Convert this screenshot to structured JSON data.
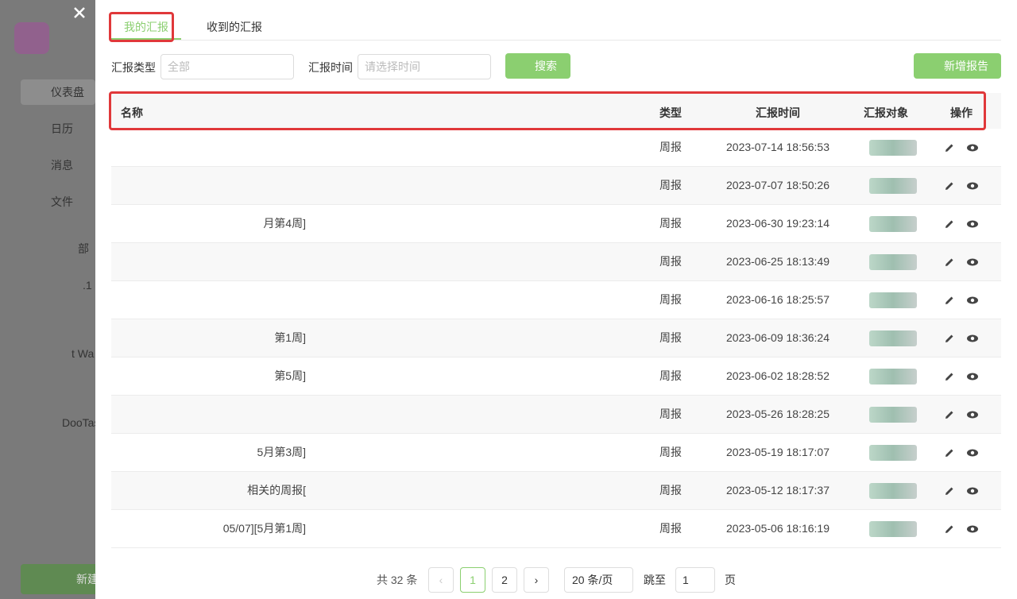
{
  "sidebar": {
    "menu": [
      "仪表盘",
      "日历",
      "消息",
      "文件"
    ],
    "fragments": [
      "部",
      ".1",
      "t Wa"
    ],
    "project": "DooTas",
    "new_button": "新建"
  },
  "tabs": [
    "我的汇报",
    "收到的汇报"
  ],
  "filters": {
    "type_label": "汇报类型",
    "type_value": "全部",
    "time_label": "汇报时间",
    "time_placeholder": "请选择时间",
    "search": "搜索",
    "add": "新增报告"
  },
  "table": {
    "headers": [
      "名称",
      "类型",
      "汇报时间",
      "汇报对象",
      "操作"
    ],
    "rows": [
      {
        "type": "周报",
        "time": "2023-07-14 18:56:53"
      },
      {
        "type": "周报",
        "time": "2023-07-07 18:50:26"
      },
      {
        "name": "月第4周]",
        "type": "周报",
        "time": "2023-06-30 19:23:14"
      },
      {
        "type": "周报",
        "time": "2023-06-25 18:13:49"
      },
      {
        "type": "周报",
        "time": "2023-06-16 18:25:57"
      },
      {
        "name": "第1周]",
        "type": "周报",
        "time": "2023-06-09 18:36:24"
      },
      {
        "name": "第5周]",
        "type": "周报",
        "time": "2023-06-02 18:28:52"
      },
      {
        "type": "周报",
        "time": "2023-05-26 18:28:25"
      },
      {
        "name": "5月第3周]",
        "type": "周报",
        "time": "2023-05-19 18:17:07"
      },
      {
        "name": "相关的周报[",
        "type": "周报",
        "time": "2023-05-12 18:17:37"
      },
      {
        "name": "05/07][5月第1周]",
        "type": "周报",
        "time": "2023-05-06 18:16:19"
      }
    ]
  },
  "pagination": {
    "total": "共 32 条",
    "pages": [
      "1",
      "2"
    ],
    "page_size": "20 条/页",
    "jump_label": "跳至",
    "jump_value": "1",
    "jump_unit": "页"
  }
}
